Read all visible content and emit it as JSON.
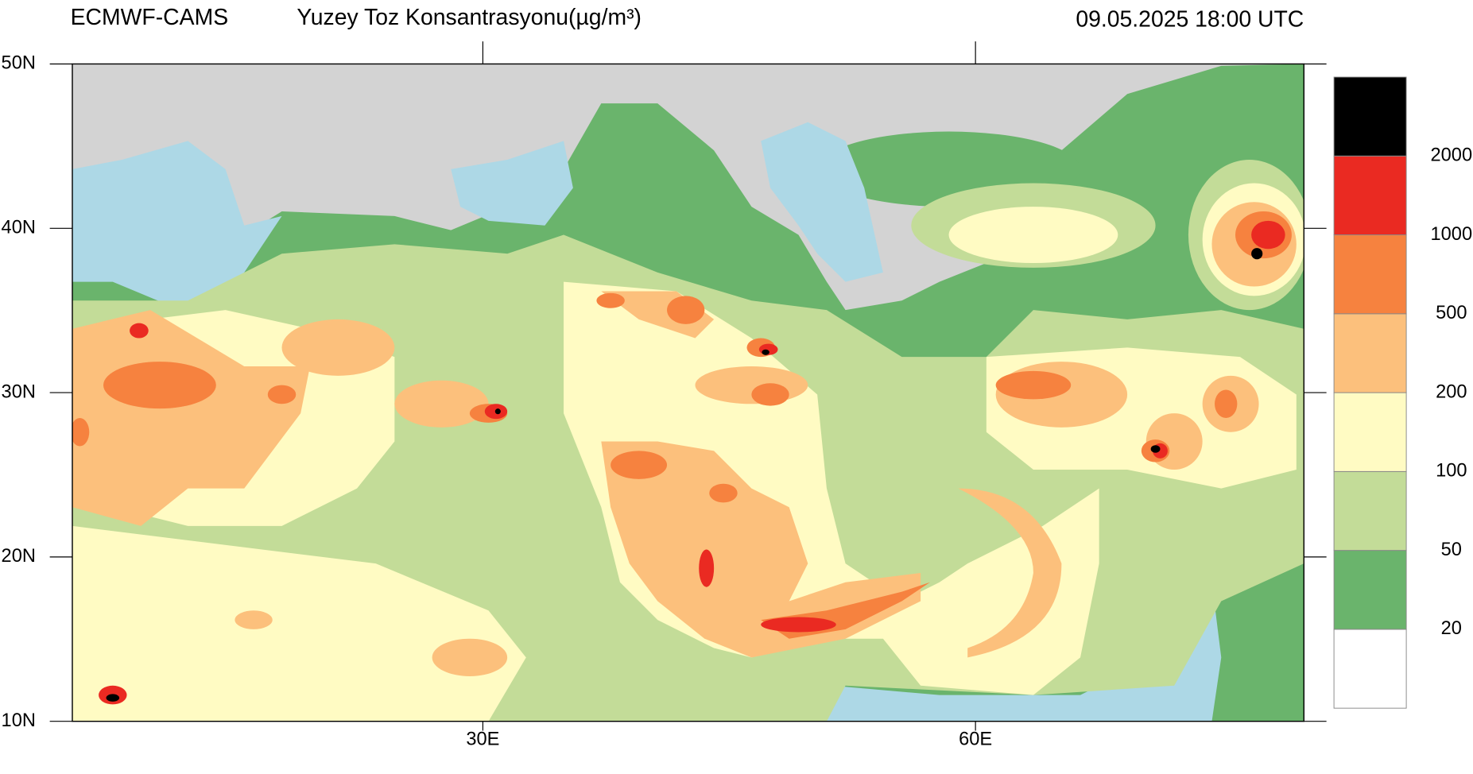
{
  "header": {
    "source": "ECMWF-CAMS",
    "title": "Yuzey Toz Konsantrasyonu(µg/m³)",
    "time": "09.05.2025 18:00 UTC"
  },
  "map": {
    "xlim": [
      5,
      80
    ],
    "ylim": [
      10,
      50
    ],
    "xticks": [
      {
        "value": 30,
        "label": "30E"
      },
      {
        "value": 60,
        "label": "60E"
      }
    ],
    "yticks": [
      {
        "value": 10,
        "label": "10N"
      },
      {
        "value": 20,
        "label": "20N"
      },
      {
        "value": 30,
        "label": "30N"
      },
      {
        "value": 40,
        "label": "40N"
      },
      {
        "value": 50,
        "label": "50N"
      }
    ]
  },
  "colorbar": {
    "levels": [
      20,
      50,
      100,
      200,
      500,
      1000,
      2000
    ],
    "colors": [
      "#ffffff",
      "#6ab46c",
      "#c3dc98",
      "#fffbc3",
      "#fcc07c",
      "#f6823f",
      "#ea2a22",
      "#000000"
    ]
  }
}
